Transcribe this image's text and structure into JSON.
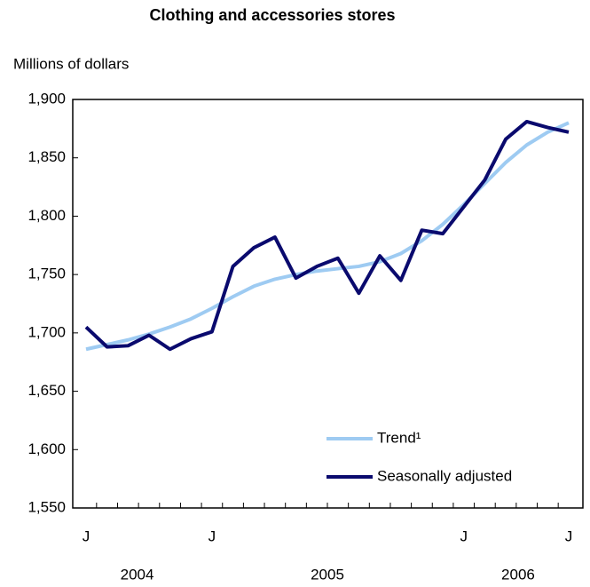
{
  "chart_data": {
    "type": "line",
    "title": "Clothing and accessories stores",
    "y_label": "Millions of dollars",
    "categories": [
      "J",
      null,
      null,
      null,
      null,
      null,
      "J",
      null,
      null,
      null,
      null,
      null,
      null,
      null,
      null,
      null,
      null,
      null,
      "J",
      null,
      null,
      null,
      null,
      "J"
    ],
    "x_groups": [
      "2004",
      "2005",
      "2006"
    ],
    "series": [
      {
        "name": "Trend¹",
        "color": "#9ecbf2",
        "values": [
          1686,
          1690,
          1694,
          1699,
          1705,
          1712,
          1721,
          1731,
          1740,
          1746,
          1750,
          1753,
          1755,
          1757,
          1761,
          1768,
          1779,
          1793,
          1810,
          1828,
          1846,
          1861,
          1872,
          1880
        ]
      },
      {
        "name": "Seasonally adjusted",
        "color": "#0a0a6e",
        "values": [
          1705,
          1688,
          1689,
          1698,
          1686,
          1695,
          1701,
          1757,
          1773,
          1782,
          1747,
          1757,
          1764,
          1734,
          1766,
          1745,
          1788,
          1785,
          1808,
          1831,
          1866,
          1881,
          1876,
          1872
        ]
      }
    ],
    "ylim": [
      1550,
      1900
    ],
    "yticks": [
      {
        "value": 1550,
        "label": "1,550"
      },
      {
        "value": 1600,
        "label": "1,600"
      },
      {
        "value": 1650,
        "label": "1,650"
      },
      {
        "value": 1700,
        "label": "1,700"
      },
      {
        "value": 1750,
        "label": "1,750"
      },
      {
        "value": 1800,
        "label": "1,800"
      },
      {
        "value": 1850,
        "label": "1,850"
      },
      {
        "value": 1900,
        "label": "1,900"
      }
    ],
    "legend": "lower right",
    "grid": false
  }
}
